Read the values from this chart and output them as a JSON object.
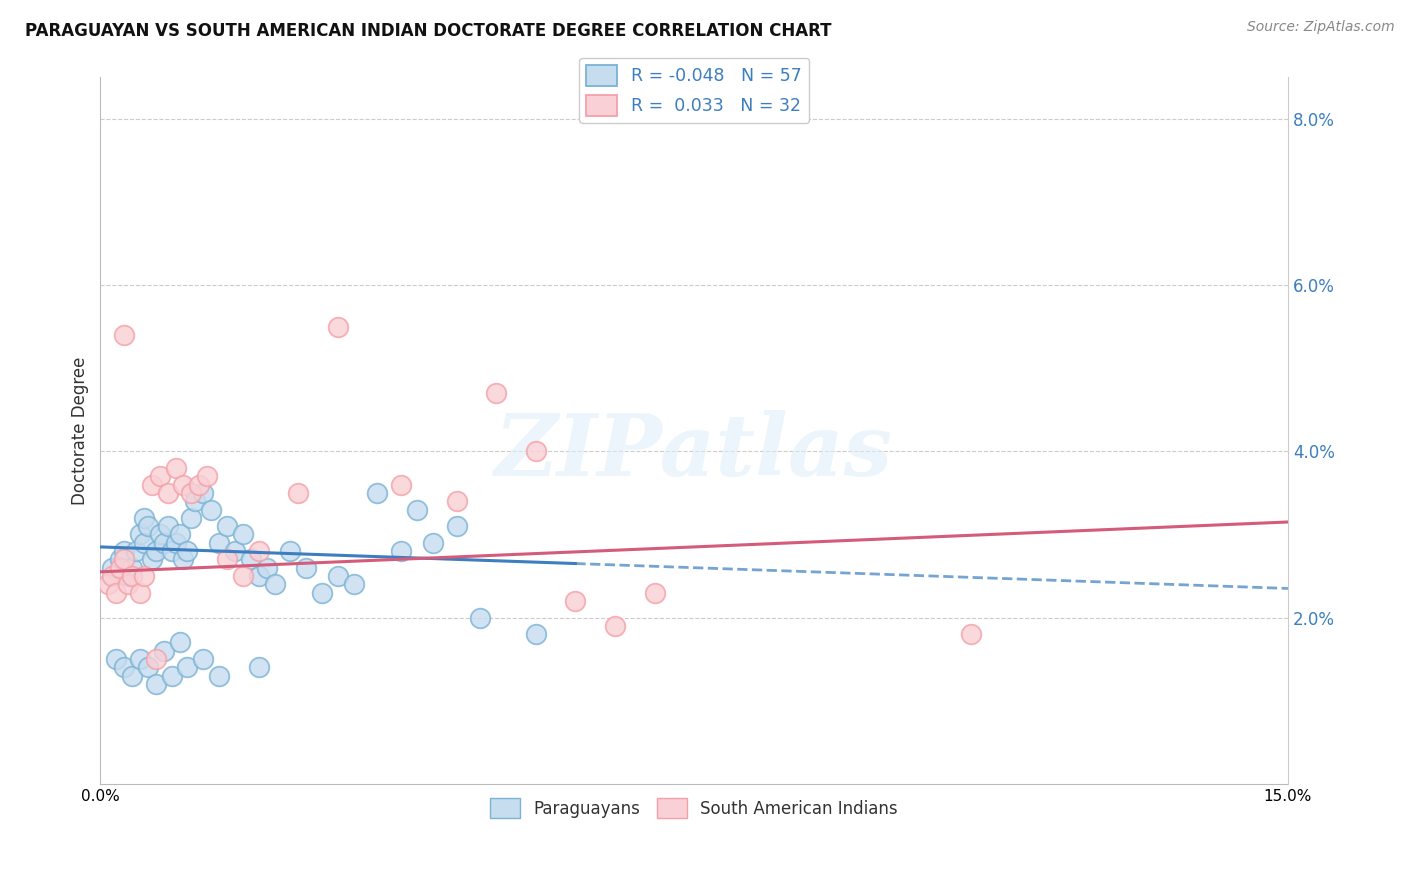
{
  "title": "PARAGUAYAN VS SOUTH AMERICAN INDIAN DOCTORATE DEGREE CORRELATION CHART",
  "source": "Source: ZipAtlas.com",
  "ylabel": "Doctorate Degree",
  "xlim": [
    0.0,
    15.0
  ],
  "ylim": [
    0.0,
    8.5
  ],
  "yticks": [
    2.0,
    4.0,
    6.0,
    8.0
  ],
  "xticks": [
    0.0,
    3.0,
    6.0,
    9.0,
    12.0,
    15.0
  ],
  "legend_blue_label": "R = -0.048   N = 57",
  "legend_pink_label": "R =  0.033   N = 32",
  "legend_bottom_blue": "Paraguayans",
  "legend_bottom_pink": "South American Indians",
  "blue_edge": "#7ab3d4",
  "pink_edge": "#f4a0a8",
  "blue_face": "#c6dcef",
  "pink_face": "#f9d0d5",
  "blue_line_color": "#3c7ebf",
  "pink_line_color": "#d45c7a",
  "blue_x": [
    0.15,
    0.25,
    0.3,
    0.35,
    0.4,
    0.45,
    0.5,
    0.55,
    0.55,
    0.6,
    0.65,
    0.7,
    0.75,
    0.8,
    0.85,
    0.9,
    0.95,
    1.0,
    1.05,
    1.1,
    1.15,
    1.2,
    1.3,
    1.4,
    1.5,
    1.6,
    1.7,
    1.8,
    1.9,
    2.0,
    2.1,
    2.2,
    2.4,
    2.6,
    2.8,
    3.0,
    3.2,
    3.5,
    3.8,
    4.0,
    4.2,
    4.5,
    0.2,
    0.3,
    0.4,
    0.5,
    0.6,
    0.7,
    0.8,
    0.9,
    1.0,
    1.1,
    1.3,
    1.5,
    2.0,
    4.8,
    5.5
  ],
  "blue_y": [
    2.6,
    2.7,
    2.8,
    2.5,
    2.6,
    2.8,
    3.0,
    2.9,
    3.2,
    3.1,
    2.7,
    2.8,
    3.0,
    2.9,
    3.1,
    2.8,
    2.9,
    3.0,
    2.7,
    2.8,
    3.2,
    3.4,
    3.5,
    3.3,
    2.9,
    3.1,
    2.8,
    3.0,
    2.7,
    2.5,
    2.6,
    2.4,
    2.8,
    2.6,
    2.3,
    2.5,
    2.4,
    3.5,
    2.8,
    3.3,
    2.9,
    3.1,
    1.5,
    1.4,
    1.3,
    1.5,
    1.4,
    1.2,
    1.6,
    1.3,
    1.7,
    1.4,
    1.5,
    1.3,
    1.4,
    2.0,
    1.8
  ],
  "pink_x": [
    0.1,
    0.15,
    0.2,
    0.25,
    0.3,
    0.35,
    0.4,
    0.5,
    0.55,
    0.65,
    0.75,
    0.85,
    0.95,
    1.05,
    1.15,
    1.25,
    1.35,
    1.6,
    1.8,
    2.0,
    2.5,
    3.0,
    3.8,
    4.5,
    5.0,
    5.5,
    6.0,
    6.5,
    7.0,
    11.0,
    0.3,
    0.7
  ],
  "pink_y": [
    2.4,
    2.5,
    2.3,
    2.6,
    2.7,
    2.4,
    2.5,
    2.3,
    2.5,
    3.6,
    3.7,
    3.5,
    3.8,
    3.6,
    3.5,
    3.6,
    3.7,
    2.7,
    2.5,
    2.8,
    3.5,
    5.5,
    3.6,
    3.4,
    4.7,
    4.0,
    2.2,
    1.9,
    2.3,
    1.8,
    5.4,
    1.5
  ],
  "blue_trend_x0": 0.0,
  "blue_trend_x1": 15.0,
  "blue_trend_y0": 2.85,
  "blue_trend_y1": 2.35,
  "blue_solid_end": 6.0,
  "pink_trend_x0": 0.0,
  "pink_trend_x1": 15.0,
  "pink_trend_y0": 2.55,
  "pink_trend_y1": 3.15
}
